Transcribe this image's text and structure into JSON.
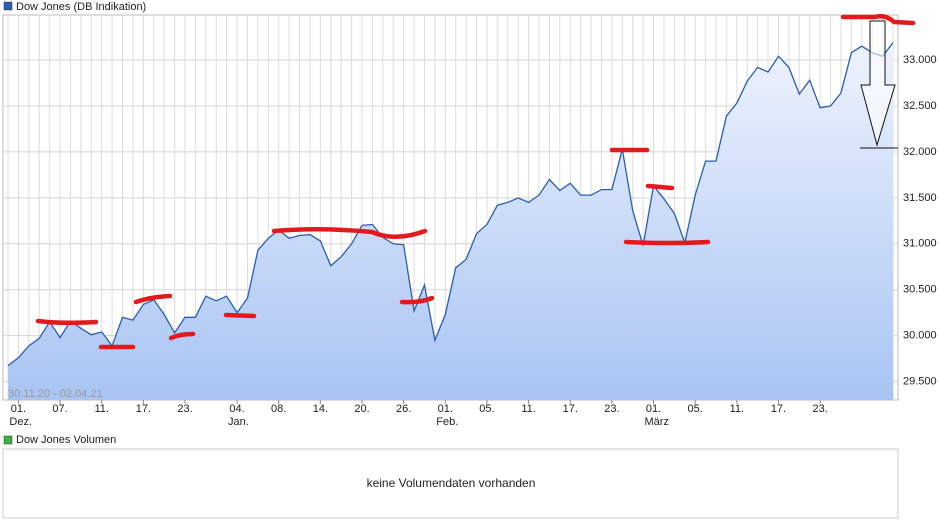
{
  "chart_data": {
    "type": "line",
    "date_range": "30.11.20 - 02.04.21",
    "categories": [
      null,
      "01.",
      null,
      null,
      null,
      "07.",
      null,
      null,
      null,
      "11.",
      null,
      null,
      null,
      "17.",
      null,
      null,
      null,
      "23.",
      null,
      null,
      null,
      null,
      "04.",
      null,
      null,
      null,
      "08.",
      null,
      null,
      null,
      "14.",
      null,
      null,
      null,
      "20.",
      null,
      null,
      null,
      "26.",
      null,
      null,
      null,
      "01.",
      null,
      null,
      null,
      "05.",
      null,
      null,
      null,
      "11.",
      null,
      null,
      null,
      "17.",
      null,
      null,
      null,
      "23.",
      null,
      null,
      null,
      "01.",
      null,
      null,
      null,
      "05.",
      null,
      null,
      null,
      "11.",
      null,
      null,
      null,
      "17.",
      null,
      null,
      null,
      "23.",
      null,
      null,
      null,
      null,
      null,
      null,
      null
    ],
    "category_months": [
      null,
      "Dez.",
      null,
      null,
      null,
      null,
      null,
      null,
      null,
      null,
      null,
      null,
      null,
      null,
      null,
      null,
      null,
      null,
      null,
      null,
      null,
      null,
      "Jan.",
      null,
      null,
      null,
      null,
      null,
      null,
      null,
      null,
      null,
      null,
      null,
      null,
      null,
      null,
      null,
      null,
      null,
      null,
      null,
      "Feb.",
      null,
      null,
      null,
      null,
      null,
      null,
      null,
      null,
      null,
      null,
      null,
      null,
      null,
      null,
      null,
      null,
      null,
      null,
      null,
      "März",
      null,
      null,
      null,
      null,
      null,
      null,
      null,
      null,
      null,
      null,
      null,
      null,
      null,
      null,
      null,
      null,
      null,
      null,
      null,
      null,
      null,
      null,
      null
    ],
    "series": [
      {
        "name": "Dow Jones (DB Indikation)",
        "color": "#2a5db0",
        "values": [
          29674,
          29760,
          29890,
          29970,
          30150,
          29980,
          30160,
          30080,
          30010,
          30040,
          29890,
          30200,
          30170,
          30340,
          30390,
          30230,
          30030,
          30200,
          30200,
          30430,
          30380,
          30430,
          30250,
          30410,
          30930,
          31060,
          31150,
          31060,
          31090,
          31100,
          31030,
          30760,
          30860,
          31000,
          31200,
          31210,
          31070,
          31000,
          30990,
          30270,
          30550,
          29950,
          30230,
          30740,
          30830,
          31110,
          31210,
          31420,
          31450,
          31500,
          31450,
          31530,
          31700,
          31580,
          31660,
          31530,
          31530,
          31590,
          31590,
          32030,
          31360,
          30980,
          31630,
          31490,
          31330,
          31010,
          31530,
          31900,
          31900,
          32390,
          32530,
          32770,
          32920,
          32870,
          33040,
          32920,
          32630,
          32780,
          32480,
          32500,
          32640,
          33080,
          33150,
          33080,
          33040,
          33190
        ]
      }
    ],
    "ylim": [
      29300,
      33490
    ],
    "yticks": [
      {
        "value": 29500,
        "label": "29.500"
      },
      {
        "value": 30000,
        "label": "30.000"
      },
      {
        "value": 30500,
        "label": "30.500"
      },
      {
        "value": 31000,
        "label": "31.000"
      },
      {
        "value": 31500,
        "label": "31.500"
      },
      {
        "value": 32000,
        "label": "32.000"
      },
      {
        "value": 32500,
        "label": "32.500"
      },
      {
        "value": 33000,
        "label": "33.000"
      }
    ],
    "grid": true
  },
  "volume_panel": {
    "legend": "Dow Jones Volumen",
    "color": "#3cb043",
    "message": "keine Volumendaten vorhanden"
  }
}
